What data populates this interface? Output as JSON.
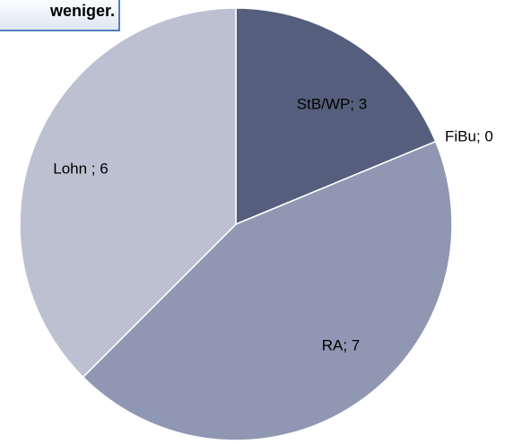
{
  "chart_data": {
    "type": "pie",
    "title": "weniger.",
    "values": [
      3,
      0,
      7,
      6
    ],
    "value_labels": [
      "StB/WP; 3",
      "FiBu; 0",
      "RA; 7",
      "Lohn ; 6"
    ],
    "colors": [
      "#555f7d",
      "#6f7896",
      "#8f97b3",
      "#bcc0d1"
    ]
  }
}
